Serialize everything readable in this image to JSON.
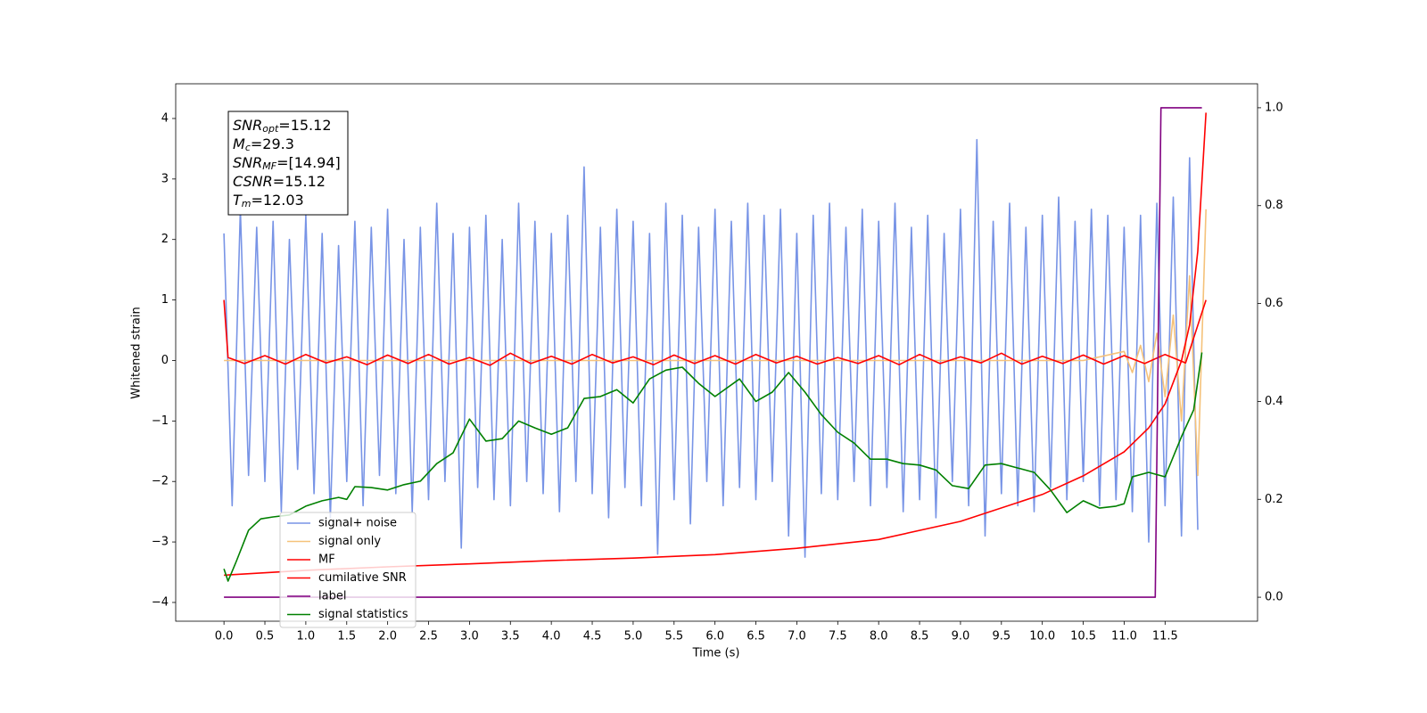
{
  "chart_data": {
    "type": "line",
    "xlabel": "Time (s)",
    "ylabel": "Whitened strain",
    "xlim": [
      -0.59,
      12.63
    ],
    "ylim": [
      -4.31,
      4.574
    ],
    "y2lim": [
      -0.049,
      1.049
    ],
    "xticks": [
      {
        "value": 0,
        "label": "0.0"
      },
      0.5,
      {
        "value": 1,
        "label": "1.0"
      },
      1.5,
      {
        "value": 2,
        "label": "2.0"
      },
      2.5,
      {
        "value": 3,
        "label": "3.0"
      },
      3.5,
      {
        "value": 4,
        "label": "4.0"
      },
      4.5,
      {
        "value": 5,
        "label": "5.0"
      },
      5.5,
      {
        "value": 6,
        "label": "6.0"
      },
      6.5,
      {
        "value": 7,
        "label": "7.0"
      },
      7.5,
      {
        "value": 8,
        "label": "8.0"
      },
      8.5,
      {
        "value": 9,
        "label": "9.0"
      },
      9.5,
      {
        "value": 10,
        "label": "10.0"
      },
      10.5,
      {
        "value": 11,
        "label": "11.0"
      },
      11.5
    ],
    "yticks": [
      {
        "value": -4,
        "label": "−4"
      },
      {
        "value": -3,
        "label": "−3"
      },
      {
        "value": -2,
        "label": "−2"
      },
      {
        "value": -1,
        "label": "−1"
      },
      0,
      1,
      2,
      3,
      4
    ],
    "y2ticks": [
      {
        "value": 0,
        "label": "0.0"
      },
      0.2,
      0.4,
      0.6,
      0.8,
      {
        "value": 1,
        "label": "1.0"
      }
    ],
    "legend": "lower left",
    "annotations": [
      {
        "symbol": "SNR",
        "subscript": "opt",
        "text": "=15.12"
      },
      {
        "symbol": "M",
        "subscript": "c",
        "text": "=29.3"
      },
      {
        "symbol": "SNR",
        "subscript": "MF",
        "text": "=[14.94]"
      },
      {
        "symbol": "CSNR",
        "text": "=15.12"
      },
      {
        "symbol": "T",
        "subscript": "m",
        "text": "=12.03"
      }
    ],
    "series": [
      {
        "name": "signal+ noise",
        "color": "#7894e6",
        "x": [
          0,
          0.1,
          0.2,
          0.3,
          0.4,
          0.5,
          0.6,
          0.7,
          0.8,
          0.9,
          1,
          1.1,
          1.2,
          1.3,
          1.4,
          1.5,
          1.6,
          1.7,
          1.8,
          1.9,
          2,
          2.1,
          2.2,
          2.3,
          2.4,
          2.5,
          2.6,
          2.7,
          2.8,
          2.9,
          3,
          3.1,
          3.2,
          3.3,
          3.4,
          3.5,
          3.6,
          3.7,
          3.8,
          3.9,
          4,
          4.1,
          4.2,
          4.3,
          4.4,
          4.5,
          4.6,
          4.7,
          4.8,
          4.9,
          5,
          5.1,
          5.2,
          5.3,
          5.4,
          5.5,
          5.6,
          5.7,
          5.8,
          5.9,
          6,
          6.1,
          6.2,
          6.3,
          6.4,
          6.5,
          6.6,
          6.7,
          6.8,
          6.9,
          7,
          7.1,
          7.2,
          7.3,
          7.4,
          7.5,
          7.6,
          7.7,
          7.8,
          7.9,
          8,
          8.1,
          8.2,
          8.3,
          8.4,
          8.5,
          8.6,
          8.7,
          8.8,
          8.9,
          9,
          9.1,
          9.2,
          9.3,
          9.4,
          9.5,
          9.6,
          9.7,
          9.8,
          9.9,
          10,
          10.1,
          10.2,
          10.3,
          10.4,
          10.5,
          10.6,
          10.7,
          10.8,
          10.9,
          11,
          11.1,
          11.2,
          11.3,
          11.4,
          11.5,
          11.6,
          11.7,
          11.8,
          11.9
        ],
        "values": [
          2.1,
          -2.4,
          2.5,
          -1.9,
          2.2,
          -2.0,
          2.3,
          -2.5,
          2.0,
          -1.8,
          2.4,
          -2.2,
          2.1,
          -2.6,
          1.9,
          -2.0,
          2.3,
          -2.4,
          2.2,
          -1.9,
          2.5,
          -2.2,
          2.0,
          -2.5,
          2.2,
          -2.3,
          2.6,
          -2.0,
          2.1,
          -3.1,
          2.2,
          -2.1,
          2.4,
          -2.3,
          2.0,
          -2.4,
          2.6,
          -2.0,
          2.3,
          -2.2,
          2.1,
          -2.5,
          2.4,
          -2.0,
          3.2,
          -2.2,
          2.2,
          -2.6,
          2.5,
          -2.1,
          2.3,
          -2.4,
          2.1,
          -3.2,
          2.6,
          -2.3,
          2.4,
          -2.7,
          2.2,
          -2.0,
          2.5,
          -2.4,
          2.3,
          -2.1,
          2.6,
          -2.3,
          2.4,
          -2.0,
          2.5,
          -2.9,
          2.1,
          -3.25,
          2.4,
          -2.2,
          2.6,
          -2.3,
          2.2,
          -2.0,
          2.5,
          -2.4,
          2.3,
          -2.1,
          2.6,
          -2.5,
          2.2,
          -2.3,
          2.4,
          -2.6,
          2.1,
          -2.0,
          2.5,
          -2.4,
          3.65,
          -2.9,
          2.3,
          -2.2,
          2.6,
          -2.4,
          2.2,
          -2.5,
          2.4,
          -2.1,
          2.7,
          -2.3,
          2.3,
          -2.0,
          2.5,
          -2.4,
          2.4,
          -2.3,
          2.2,
          -2.5,
          2.4,
          -3.0,
          2.6,
          -2.4,
          2.7,
          -2.9,
          3.35,
          -2.8
        ]
      },
      {
        "name": "signal only",
        "color": "#f5c27a",
        "x": [
          0,
          10.5,
          11,
          11.1,
          11.2,
          11.3,
          11.4,
          11.5,
          11.6,
          11.7,
          11.8,
          11.9,
          12
        ],
        "values": [
          0,
          0,
          0.15,
          -0.2,
          0.25,
          -0.35,
          0.45,
          -0.6,
          0.75,
          -1.0,
          1.4,
          -1.9,
          2.5
        ]
      },
      {
        "name": "MF",
        "color": "#ff0000",
        "x": [
          0,
          0.05,
          0.25,
          0.5,
          0.75,
          1,
          1.25,
          1.5,
          1.75,
          2,
          2.25,
          2.5,
          2.75,
          3,
          3.25,
          3.5,
          3.75,
          4,
          4.25,
          4.5,
          4.75,
          5,
          5.25,
          5.5,
          5.75,
          6,
          6.25,
          6.5,
          6.75,
          7,
          7.25,
          7.5,
          7.75,
          8,
          8.25,
          8.5,
          8.75,
          9,
          9.25,
          9.5,
          9.75,
          10,
          10.25,
          10.5,
          10.75,
          11,
          11.25,
          11.5,
          11.75,
          12
        ],
        "values": [
          1.0,
          0.05,
          -0.05,
          0.08,
          -0.06,
          0.1,
          -0.04,
          0.06,
          -0.07,
          0.09,
          -0.05,
          0.1,
          -0.06,
          0.05,
          -0.08,
          0.12,
          -0.05,
          0.07,
          -0.06,
          0.1,
          -0.04,
          0.06,
          -0.07,
          0.09,
          -0.05,
          0.08,
          -0.06,
          0.1,
          -0.04,
          0.07,
          -0.06,
          0.05,
          -0.05,
          0.08,
          -0.07,
          0.1,
          -0.05,
          0.06,
          -0.04,
          0.12,
          -0.06,
          0.07,
          -0.05,
          0.09,
          -0.06,
          0.08,
          -0.05,
          0.1,
          -0.04,
          1.0
        ]
      },
      {
        "name": "cumilative SNR",
        "color": "#ff0000",
        "axis": "y2",
        "x": [
          0,
          1,
          2,
          3,
          4,
          5,
          6,
          7,
          8,
          9,
          10,
          10.5,
          11,
          11.3,
          11.5,
          11.7,
          11.8,
          11.9,
          12
        ],
        "values": [
          0.045,
          0.055,
          0.062,
          0.068,
          0.075,
          0.08,
          0.087,
          0.1,
          0.118,
          0.155,
          0.21,
          0.248,
          0.297,
          0.346,
          0.395,
          0.483,
          0.556,
          0.707,
          0.99
        ]
      },
      {
        "name": "label",
        "color": "#800080",
        "axis": "y2",
        "x": [
          0,
          11.38,
          11.45,
          11.95
        ],
        "values": [
          0,
          0,
          1,
          1
        ]
      },
      {
        "name": "signal statistics",
        "color": "#008000",
        "axis": "y2",
        "x": [
          0,
          0.05,
          0.15,
          0.3,
          0.45,
          0.6,
          0.8,
          1,
          1.2,
          1.4,
          1.5,
          1.6,
          1.8,
          2,
          2.2,
          2.4,
          2.6,
          2.8,
          3,
          3.2,
          3.4,
          3.6,
          3.8,
          4,
          4.2,
          4.4,
          4.6,
          4.8,
          5,
          5.2,
          5.4,
          5.6,
          5.8,
          6,
          6.3,
          6.5,
          6.7,
          6.9,
          7.1,
          7.3,
          7.5,
          7.7,
          7.9,
          8.1,
          8.3,
          8.5,
          8.7,
          8.9,
          9.1,
          9.3,
          9.5,
          9.7,
          9.9,
          10.1,
          10.3,
          10.5,
          10.7,
          10.9,
          11,
          11.1,
          11.3,
          11.5,
          11.7,
          11.85,
          11.95
        ],
        "values": [
          0.058,
          0.033,
          0.073,
          0.137,
          0.16,
          0.164,
          0.168,
          0.186,
          0.197,
          0.204,
          0.2,
          0.226,
          0.224,
          0.219,
          0.23,
          0.237,
          0.273,
          0.295,
          0.364,
          0.319,
          0.324,
          0.36,
          0.346,
          0.333,
          0.346,
          0.406,
          0.41,
          0.424,
          0.397,
          0.446,
          0.464,
          0.47,
          0.437,
          0.41,
          0.446,
          0.4,
          0.419,
          0.459,
          0.419,
          0.373,
          0.337,
          0.315,
          0.282,
          0.282,
          0.273,
          0.27,
          0.26,
          0.228,
          0.222,
          0.27,
          0.273,
          0.264,
          0.255,
          0.219,
          0.173,
          0.197,
          0.182,
          0.186,
          0.191,
          0.246,
          0.255,
          0.246,
          0.328,
          0.383,
          0.5
        ]
      }
    ]
  }
}
